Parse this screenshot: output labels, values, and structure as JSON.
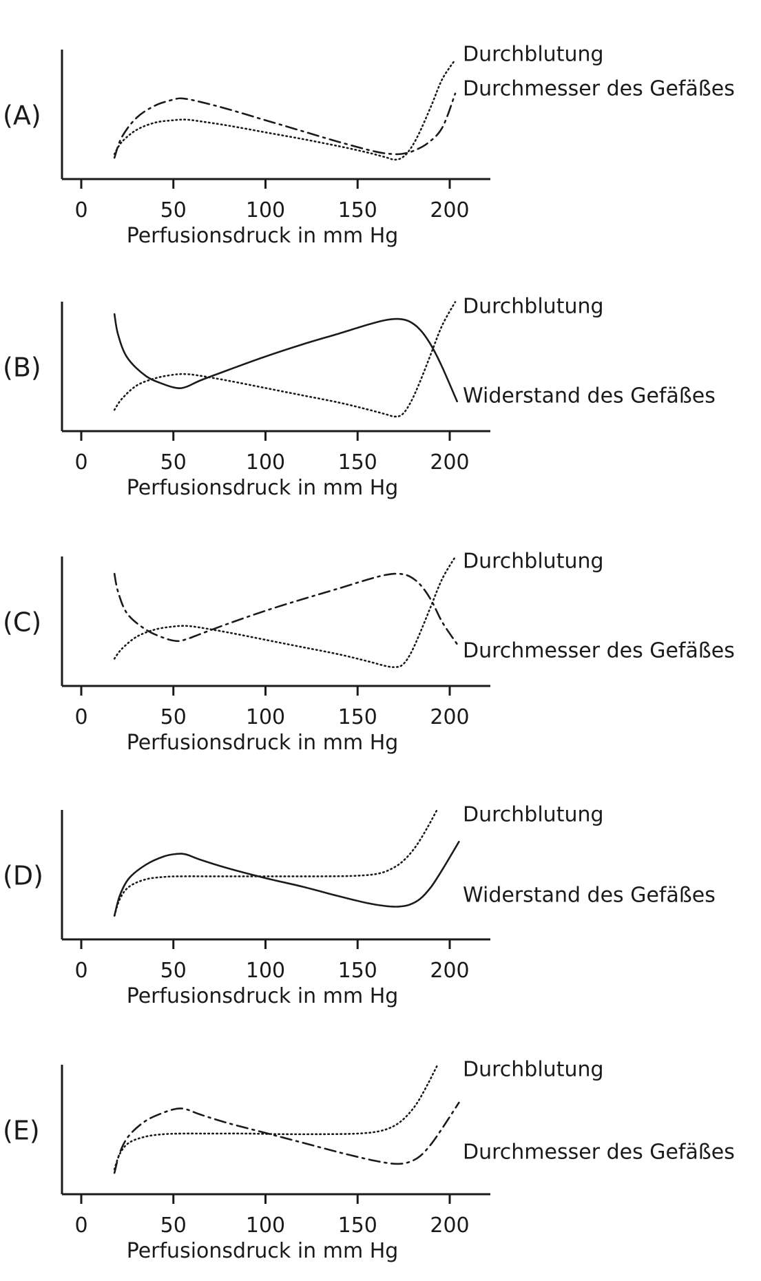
{
  "chart_data": [
    {
      "type": "line",
      "panel_label": "(A)",
      "xlabel": "Perfusionsdruck in mm Hg",
      "xticks": [
        0,
        50,
        100,
        150,
        200
      ],
      "xlim": [
        -10,
        222
      ],
      "ylim": [
        0,
        10
      ],
      "series": [
        {
          "name": "Durchblutung",
          "style": "dotted",
          "x": [
            18,
            22,
            30,
            40,
            50,
            57,
            65,
            80,
            100,
            120,
            140,
            155,
            165,
            170,
            174,
            178,
            183,
            190,
            196,
            203
          ],
          "y": [
            1.6,
            2.6,
            3.6,
            4.2,
            4.4,
            4.45,
            4.3,
            3.95,
            3.4,
            2.85,
            2.25,
            1.75,
            1.35,
            1.15,
            1.3,
            1.9,
            3.2,
            5.6,
            7.8,
            9.4
          ]
        },
        {
          "name": "Durchmesser des Gefäßes",
          "style": "dash-dot",
          "x": [
            18,
            22,
            30,
            40,
            50,
            55,
            65,
            80,
            100,
            120,
            140,
            160,
            170,
            175,
            180,
            188,
            196,
            203
          ],
          "y": [
            1.3,
            3.0,
            4.6,
            5.6,
            6.1,
            6.2,
            5.9,
            5.3,
            4.4,
            3.5,
            2.6,
            1.8,
            1.6,
            1.65,
            1.85,
            2.5,
            3.8,
            6.6
          ]
        }
      ]
    },
    {
      "type": "line",
      "panel_label": "(B)",
      "xlabel": "Perfusionsdruck in mm Hg",
      "xticks": [
        0,
        50,
        100,
        150,
        200
      ],
      "xlim": [
        -10,
        222
      ],
      "ylim": [
        0,
        10
      ],
      "series": [
        {
          "name": "Durchblutung",
          "style": "dotted",
          "x": [
            18,
            22,
            30,
            40,
            50,
            57,
            65,
            80,
            100,
            120,
            140,
            155,
            165,
            170,
            174,
            178,
            183,
            190,
            196,
            203
          ],
          "y": [
            1.3,
            2.2,
            3.3,
            3.9,
            4.2,
            4.25,
            4.1,
            3.7,
            3.1,
            2.5,
            1.9,
            1.35,
            0.95,
            0.75,
            0.9,
            1.7,
            3.3,
            6.0,
            8.3,
            10.2
          ]
        },
        {
          "name": "Widerstand des Gefäßes",
          "style": "solid",
          "x": [
            18,
            20,
            25,
            35,
            45,
            52,
            57,
            65,
            80,
            100,
            120,
            140,
            155,
            165,
            172,
            178,
            184,
            190,
            196,
            204
          ],
          "y": [
            9.2,
            7.5,
            5.6,
            4.1,
            3.4,
            3.1,
            3.2,
            3.75,
            4.6,
            5.7,
            6.7,
            7.6,
            8.3,
            8.7,
            8.8,
            8.6,
            7.9,
            6.6,
            4.8,
            2.0
          ]
        }
      ]
    },
    {
      "type": "line",
      "panel_label": "(C)",
      "xlabel": "Perfusionsdruck in mm Hg",
      "xticks": [
        0,
        50,
        100,
        150,
        200
      ],
      "xlim": [
        -10,
        222
      ],
      "ylim": [
        0,
        10
      ],
      "series": [
        {
          "name": "Durchblutung",
          "style": "dotted",
          "x": [
            18,
            22,
            30,
            40,
            50,
            57,
            65,
            80,
            100,
            120,
            140,
            155,
            165,
            170,
            174,
            178,
            183,
            190,
            196,
            203
          ],
          "y": [
            1.8,
            2.6,
            3.6,
            4.2,
            4.45,
            4.5,
            4.35,
            3.95,
            3.35,
            2.75,
            2.15,
            1.6,
            1.2,
            1.1,
            1.25,
            2.0,
            3.6,
            6.2,
            8.4,
            10.2
          ]
        },
        {
          "name": "Durchmesser des Gefäßes",
          "style": "dash-dot",
          "x": [
            18,
            20,
            25,
            35,
            45,
            52,
            57,
            65,
            80,
            100,
            120,
            140,
            155,
            165,
            172,
            178,
            184,
            190,
            196,
            204
          ],
          "y": [
            8.8,
            7.3,
            5.5,
            4.2,
            3.5,
            3.25,
            3.4,
            3.85,
            4.7,
            5.75,
            6.7,
            7.6,
            8.3,
            8.7,
            8.8,
            8.6,
            7.9,
            6.6,
            4.8,
            3.0
          ]
        }
      ]
    },
    {
      "type": "line",
      "panel_label": "(D)",
      "xlabel": "Perfusionsdruck in mm Hg",
      "xticks": [
        0,
        50,
        100,
        150,
        200
      ],
      "xlim": [
        -10,
        222
      ],
      "ylim": [
        0,
        10
      ],
      "series": [
        {
          "name": "Durchblutung",
          "style": "dotted",
          "x": [
            18,
            21,
            26,
            35,
            45,
            55,
            70,
            90,
            110,
            130,
            150,
            162,
            170,
            176,
            182,
            188,
            193
          ],
          "y": [
            1.5,
            2.9,
            3.9,
            4.5,
            4.7,
            4.75,
            4.75,
            4.75,
            4.75,
            4.75,
            4.8,
            5.0,
            5.5,
            6.2,
            7.3,
            8.8,
            10.2
          ]
        },
        {
          "name": "Widerstand des Gefäßes",
          "style": "solid",
          "x": [
            18,
            21,
            26,
            35,
            45,
            52,
            57,
            65,
            80,
            100,
            120,
            140,
            155,
            165,
            172,
            178,
            184,
            190,
            196,
            205
          ],
          "y": [
            1.5,
            3.2,
            4.6,
            5.7,
            6.4,
            6.6,
            6.55,
            6.1,
            5.4,
            4.6,
            3.9,
            3.1,
            2.55,
            2.3,
            2.25,
            2.4,
            2.9,
            3.9,
            5.3,
            7.6
          ]
        }
      ]
    },
    {
      "type": "line",
      "panel_label": "(E)",
      "xlabel": "Perfusionsdruck in mm Hg",
      "xticks": [
        0,
        50,
        100,
        150,
        200
      ],
      "xlim": [
        -10,
        222
      ],
      "ylim": [
        0,
        10
      ],
      "series": [
        {
          "name": "Durchblutung",
          "style": "dotted",
          "x": [
            18,
            21,
            26,
            35,
            45,
            55,
            70,
            90,
            110,
            130,
            150,
            162,
            170,
            176,
            182,
            188,
            193
          ],
          "y": [
            1.6,
            2.9,
            3.8,
            4.3,
            4.5,
            4.55,
            4.55,
            4.55,
            4.5,
            4.5,
            4.55,
            4.75,
            5.2,
            5.9,
            7.0,
            8.6,
            10.1
          ]
        },
        {
          "name": "Durchmesser des Gefäßes",
          "style": "dash-dot",
          "x": [
            18,
            21,
            26,
            35,
            45,
            52,
            57,
            65,
            80,
            100,
            120,
            140,
            155,
            165,
            172,
            178,
            184,
            190,
            196,
            205
          ],
          "y": [
            1.3,
            3.0,
            4.4,
            5.6,
            6.3,
            6.6,
            6.55,
            6.1,
            5.4,
            4.6,
            3.8,
            3.0,
            2.45,
            2.15,
            2.05,
            2.2,
            2.7,
            3.7,
            5.0,
            7.1
          ]
        }
      ]
    }
  ]
}
